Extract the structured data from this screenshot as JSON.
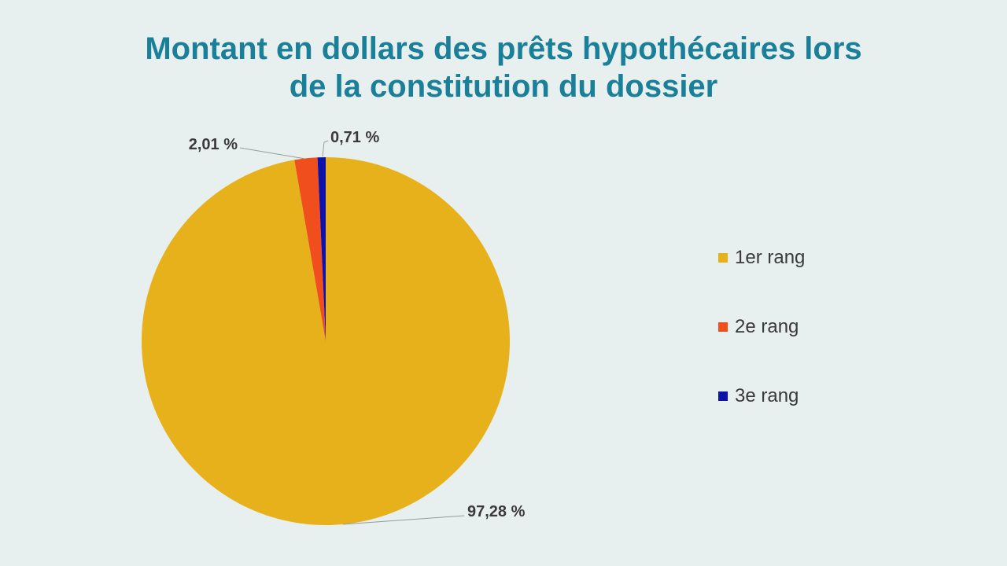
{
  "chart_data": {
    "type": "pie",
    "title_lines": [
      "Montant en dollars des prêts hypothécaires lors",
      "de la constitution du dossier"
    ],
    "slices": [
      {
        "name": "1er rang",
        "value": 97.28,
        "label": "97,28 %",
        "color": "#e6b11a"
      },
      {
        "name": "2e rang",
        "value": 2.01,
        "label": "2,01 %",
        "color": "#f04e1c"
      },
      {
        "name": "3e rang",
        "value": 0.71,
        "label": "0,71 %",
        "color": "#0d13a8"
      }
    ],
    "legend_position": "right"
  }
}
